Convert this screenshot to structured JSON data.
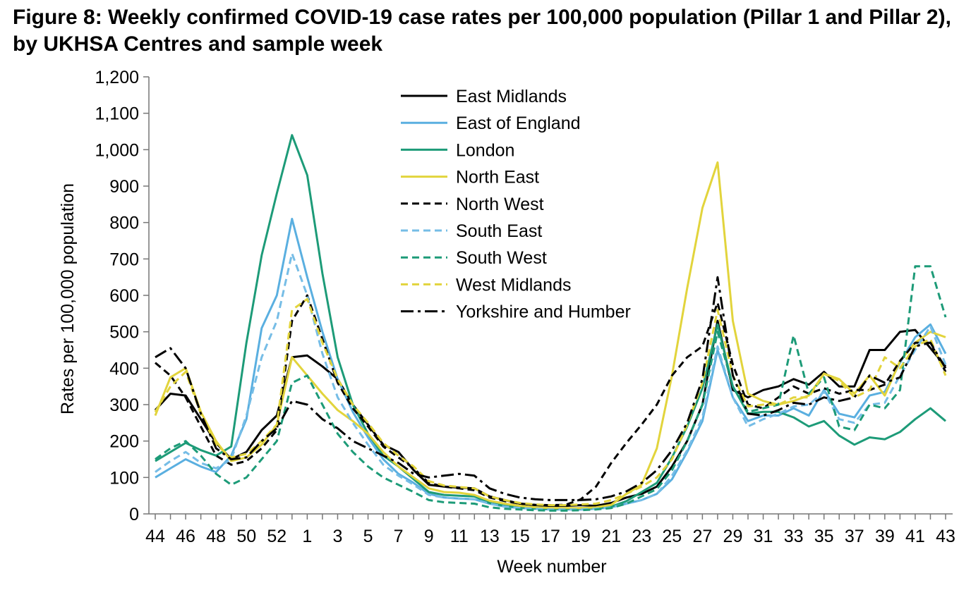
{
  "chart_data": {
    "type": "line",
    "title": "Figure 8: Weekly confirmed COVID-19 case rates per 100,000 population (Pillar 1 and Pillar 2), by UKHSA Centres and sample week",
    "xlabel": "Week number",
    "ylabel": "Rates per 100,000 population",
    "ylim": [
      0,
      1200
    ],
    "yticks": [
      0,
      100,
      200,
      300,
      400,
      500,
      600,
      700,
      800,
      900,
      1000,
      1100,
      1200
    ],
    "ytick_labels": [
      "0",
      "100",
      "200",
      "300",
      "400",
      "500",
      "600",
      "700",
      "800",
      "900",
      "1,000",
      "1,100",
      "1,200"
    ],
    "categories": [
      "44",
      "45",
      "46",
      "47",
      "48",
      "49",
      "50",
      "51",
      "52",
      "53",
      "1",
      "2",
      "3",
      "4",
      "5",
      "6",
      "7",
      "8",
      "9",
      "10",
      "11",
      "12",
      "13",
      "14",
      "15",
      "16",
      "17",
      "18",
      "19",
      "20",
      "21",
      "22",
      "23",
      "24",
      "25",
      "26",
      "27",
      "28",
      "29",
      "30",
      "31",
      "32",
      "33",
      "34",
      "35",
      "36",
      "37",
      "38",
      "39",
      "40",
      "41",
      "42",
      "43"
    ],
    "xtick_labels": [
      "44",
      "46",
      "48",
      "50",
      "52",
      "1",
      "3",
      "5",
      "7",
      "9",
      "11",
      "13",
      "15",
      "17",
      "19",
      "21",
      "23",
      "25",
      "27",
      "29",
      "31",
      "33",
      "35",
      "37",
      "39",
      "41",
      "43"
    ],
    "grid": false,
    "legend_position": "top-center",
    "series": [
      {
        "name": "East Midlands",
        "color": "#000000",
        "dash": "solid",
        "values": [
          285,
          330,
          325,
          260,
          195,
          150,
          170,
          230,
          270,
          430,
          435,
          405,
          370,
          300,
          245,
          190,
          170,
          120,
          80,
          75,
          72,
          70,
          48,
          38,
          28,
          24,
          22,
          22,
          24,
          22,
          30,
          45,
          55,
          75,
          130,
          200,
          300,
          530,
          340,
          320,
          340,
          350,
          370,
          355,
          390,
          350,
          350,
          450,
          450,
          500,
          505,
          455,
          405
        ]
      },
      {
        "name": "East of England",
        "color": "#5aafe0",
        "dash": "solid",
        "values": [
          100,
          125,
          150,
          130,
          115,
          160,
          260,
          510,
          600,
          810,
          650,
          500,
          370,
          280,
          210,
          150,
          110,
          85,
          55,
          45,
          42,
          40,
          28,
          20,
          16,
          14,
          12,
          12,
          12,
          14,
          18,
          28,
          38,
          55,
          95,
          170,
          255,
          450,
          320,
          255,
          270,
          270,
          290,
          270,
          340,
          275,
          265,
          325,
          335,
          415,
          485,
          520,
          440
        ]
      },
      {
        "name": "London",
        "color": "#1d9b78",
        "dash": "solid",
        "values": [
          145,
          170,
          195,
          175,
          160,
          185,
          470,
          710,
          880,
          1040,
          930,
          660,
          430,
          300,
          220,
          160,
          130,
          95,
          60,
          52,
          50,
          48,
          30,
          22,
          18,
          15,
          14,
          14,
          16,
          16,
          20,
          35,
          60,
          85,
          155,
          240,
          345,
          520,
          350,
          275,
          280,
          280,
          265,
          240,
          255,
          215,
          190,
          210,
          205,
          225,
          260,
          290,
          255
        ]
      },
      {
        "name": "North East",
        "color": "#e2d43c",
        "dash": "solid",
        "values": [
          270,
          375,
          400,
          280,
          200,
          145,
          155,
          190,
          245,
          430,
          380,
          330,
          285,
          255,
          220,
          170,
          130,
          100,
          70,
          60,
          58,
          52,
          36,
          28,
          22,
          18,
          16,
          16,
          16,
          18,
          25,
          55,
          80,
          180,
          380,
          620,
          840,
          965,
          530,
          330,
          310,
          300,
          310,
          325,
          385,
          370,
          330,
          380,
          325,
          420,
          470,
          500,
          485
        ]
      },
      {
        "name": "North West",
        "color": "#000000",
        "dash": "dash",
        "values": [
          415,
          380,
          320,
          240,
          160,
          135,
          145,
          180,
          230,
          530,
          600,
          480,
          360,
          290,
          240,
          185,
          155,
          125,
          85,
          75,
          70,
          65,
          45,
          35,
          28,
          25,
          24,
          25,
          40,
          75,
          140,
          195,
          245,
          300,
          380,
          430,
          460,
          580,
          410,
          300,
          290,
          320,
          350,
          330,
          345,
          330,
          340,
          340,
          355,
          420,
          470,
          470,
          390
        ]
      },
      {
        "name": "South East",
        "color": "#76bde6",
        "dash": "dash",
        "values": [
          115,
          145,
          170,
          140,
          125,
          150,
          270,
          430,
          530,
          715,
          600,
          440,
          320,
          250,
          190,
          135,
          105,
          80,
          52,
          45,
          42,
          40,
          28,
          20,
          16,
          14,
          12,
          12,
          12,
          14,
          18,
          28,
          38,
          55,
          105,
          175,
          265,
          460,
          320,
          240,
          260,
          275,
          295,
          300,
          335,
          260,
          250,
          300,
          305,
          380,
          450,
          515,
          410
        ]
      },
      {
        "name": "South West",
        "color": "#1d9b78",
        "dash": "dash",
        "values": [
          150,
          180,
          200,
          160,
          110,
          80,
          100,
          150,
          200,
          360,
          380,
          300,
          220,
          170,
          130,
          100,
          80,
          60,
          38,
          32,
          30,
          28,
          18,
          14,
          12,
          10,
          9,
          9,
          10,
          12,
          16,
          28,
          48,
          68,
          120,
          200,
          300,
          500,
          350,
          280,
          290,
          300,
          490,
          330,
          375,
          240,
          230,
          300,
          290,
          340,
          680,
          680,
          540
        ]
      },
      {
        "name": "West Midlands",
        "color": "#e2d43c",
        "dash": "dash",
        "values": [
          280,
          350,
          390,
          275,
          190,
          155,
          165,
          200,
          245,
          560,
          590,
          470,
          370,
          300,
          250,
          195,
          160,
          130,
          90,
          78,
          74,
          70,
          48,
          38,
          30,
          26,
          24,
          24,
          26,
          28,
          38,
          55,
          75,
          100,
          150,
          245,
          360,
          560,
          380,
          295,
          300,
          300,
          320,
          320,
          385,
          365,
          320,
          340,
          430,
          400,
          460,
          480,
          380
        ]
      },
      {
        "name": "Yorkshire and Humber",
        "color": "#000000",
        "dash": "dashdot",
        "values": [
          430,
          455,
          400,
          275,
          180,
          150,
          155,
          200,
          235,
          310,
          300,
          260,
          235,
          200,
          180,
          160,
          140,
          110,
          100,
          105,
          110,
          105,
          70,
          55,
          45,
          40,
          38,
          38,
          38,
          40,
          48,
          62,
          85,
          120,
          175,
          250,
          370,
          650,
          380,
          275,
          270,
          285,
          305,
          300,
          320,
          310,
          320,
          380,
          360,
          375,
          460,
          470,
          400
        ]
      }
    ]
  }
}
